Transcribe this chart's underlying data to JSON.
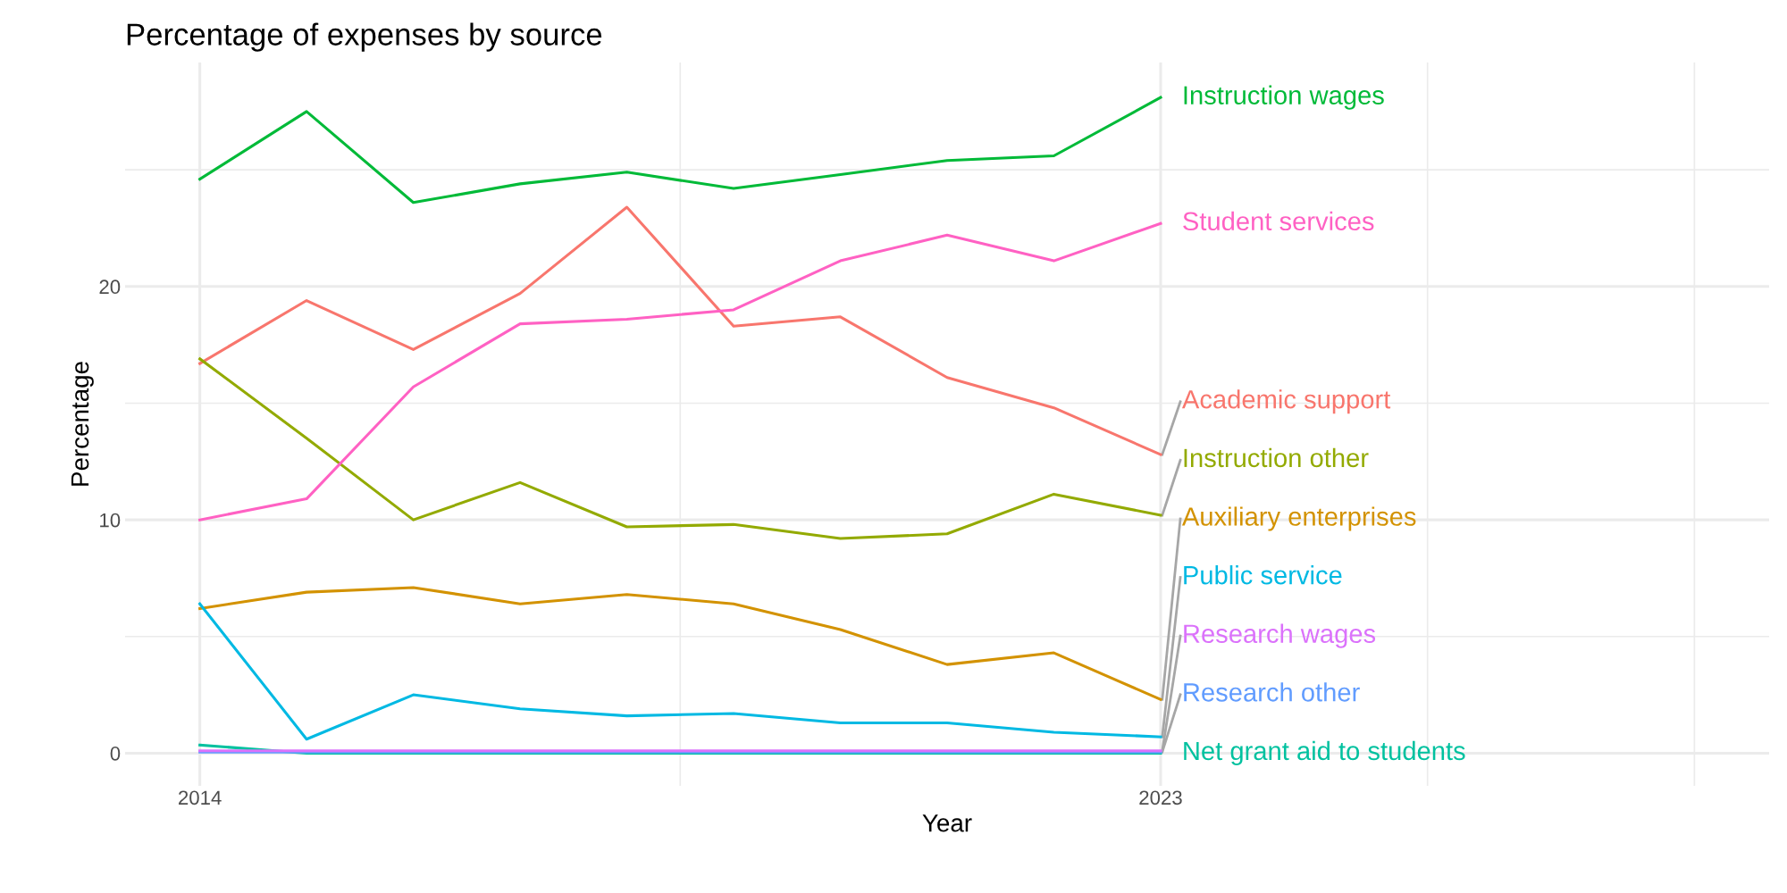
{
  "chart_data": {
    "type": "line",
    "title": "Percentage of expenses by source",
    "xlabel": "Year",
    "ylabel": "Percentage",
    "x": [
      2014,
      2015,
      2016,
      2017,
      2018,
      2019,
      2020,
      2021,
      2022,
      2023
    ],
    "xlim": [
      2013.3,
      2028.7
    ],
    "xticks": [
      2014,
      {
        "value": 2018.5,
        "label": null
      },
      2023,
      {
        "value": 2025.5,
        "label": null
      },
      {
        "value": 2028,
        "label": null
      }
    ],
    "ylim": [
      -1.4,
      29.6
    ],
    "yticks": [
      0,
      {
        "value": 5,
        "label": null
      },
      10,
      {
        "value": 15,
        "label": null
      },
      20,
      {
        "value": 25,
        "label": null
      }
    ],
    "grid": true,
    "legend": false,
    "marker": "none",
    "line_style": "solid",
    "series": [
      {
        "name": "Academic support",
        "color": "#F8766D",
        "values": [
          16.7,
          19.4,
          17.3,
          19.7,
          23.4,
          18.3,
          18.7,
          16.1,
          14.8,
          12.8
        ]
      },
      {
        "name": "Auxiliary enterprises",
        "color": "#D39200",
        "values": [
          6.2,
          6.9,
          7.1,
          6.4,
          6.8,
          6.4,
          5.3,
          3.8,
          4.3,
          2.3
        ]
      },
      {
        "name": "Instruction other",
        "color": "#93AA00",
        "values": [
          16.9,
          13.5,
          10.0,
          11.6,
          9.7,
          9.8,
          9.2,
          9.4,
          11.1,
          10.2
        ]
      },
      {
        "name": "Instruction wages",
        "color": "#00BA38",
        "values": [
          24.6,
          27.5,
          23.6,
          24.4,
          24.9,
          24.2,
          24.8,
          25.4,
          25.6,
          28.1
        ]
      },
      {
        "name": "Net grant aid to students",
        "color": "#00C19F",
        "values": [
          0.35,
          0.0,
          0.0,
          0.0,
          0.0,
          0.0,
          0.0,
          0.0,
          0.0,
          0.0
        ]
      },
      {
        "name": "Public service",
        "color": "#00B9E3",
        "values": [
          6.4,
          0.6,
          2.5,
          1.9,
          1.6,
          1.7,
          1.3,
          1.3,
          0.9,
          0.7
        ]
      },
      {
        "name": "Research other",
        "color": "#619CFF",
        "values": [
          0.05,
          0.05,
          0.05,
          0.05,
          0.05,
          0.05,
          0.05,
          0.05,
          0.05,
          0.05
        ]
      },
      {
        "name": "Research wages",
        "color": "#DB72FB",
        "values": [
          0.1,
          0.1,
          0.1,
          0.1,
          0.1,
          0.1,
          0.1,
          0.1,
          0.1,
          0.1
        ]
      },
      {
        "name": "Student services",
        "color": "#FF61C3",
        "values": [
          10.0,
          10.9,
          15.7,
          18.4,
          18.6,
          19.0,
          21.1,
          22.2,
          21.1,
          22.7
        ]
      }
    ]
  }
}
